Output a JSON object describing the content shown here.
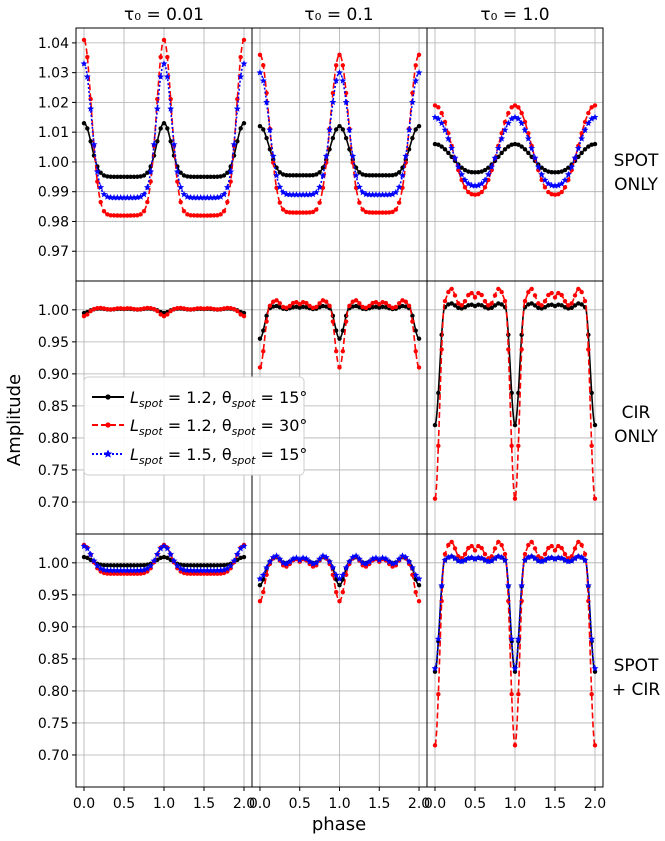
{
  "figure": {
    "ylabel": "Amplitude",
    "xlabel": "phase",
    "columns": [
      "τ₀ = 0.01",
      "τ₀ = 0.1",
      "τ₀ = 1.0"
    ],
    "rows": [
      [
        "SPOT",
        "ONLY"
      ],
      [
        "CIR",
        "ONLY"
      ],
      [
        "SPOT",
        "+ CIR"
      ]
    ],
    "legend": {
      "placement": "middle-left of row 2, column 1",
      "entries": [
        {
          "lhs": "L",
          "sub1": "spot",
          "mid": " = 1.2, θ",
          "sub2": "spot",
          "rhs": " = 15°"
        },
        {
          "lhs": "L",
          "sub1": "spot",
          "mid": " = 1.2, θ",
          "sub2": "spot",
          "rhs": " = 30°"
        },
        {
          "lhs": "L",
          "sub1": "spot",
          "mid": " = 1.5, θ",
          "sub2": "spot",
          "rhs": " = 15°"
        }
      ]
    }
  },
  "chart_data": {
    "type": "line",
    "grid": true,
    "xlim": [
      -0.1,
      2.1
    ],
    "xticks": [
      0.0,
      0.5,
      1.0,
      1.5,
      2.0
    ],
    "xtick_labels": [
      "0.0",
      "0.5",
      "1.0",
      "1.5",
      "2.0"
    ],
    "series_styles": [
      {
        "color": "#000000",
        "dash": "",
        "marker": "dot"
      },
      {
        "color": "#ff0000",
        "dash": "6,3",
        "marker": "dot"
      },
      {
        "color": "#0000ff",
        "dash": "2,2",
        "marker": "star"
      }
    ],
    "rows": [
      {
        "ylim": [
          0.96,
          1.045
        ],
        "yticks": [
          0.97,
          0.98,
          0.99,
          1.0,
          1.01,
          1.02,
          1.03,
          1.04
        ],
        "ytick_labels": [
          "0.97",
          "0.98",
          "0.99",
          "1.00",
          "1.01",
          "1.02",
          "1.03",
          "1.04"
        ],
        "panels": [
          {
            "title": "τ₀ = 0.01",
            "series": [
              {
                "shape": "flat",
                "base": 1.0,
                "flat": 0.995,
                "peak": 1.013
              },
              {
                "shape": "flat",
                "base": 1.0,
                "flat": 0.982,
                "peak": 1.041
              },
              {
                "shape": "flat",
                "base": 1.0,
                "flat": 0.988,
                "peak": 1.033
              }
            ]
          },
          {
            "title": "τ₀ = 0.1",
            "series": [
              {
                "shape": "round",
                "base": 1.0,
                "flat": 0.9955,
                "peak": 1.012
              },
              {
                "shape": "round",
                "base": 1.0,
                "flat": 0.983,
                "peak": 1.036
              },
              {
                "shape": "round",
                "base": 1.0,
                "flat": 0.989,
                "peak": 1.03
              }
            ]
          },
          {
            "title": "τ₀ = 1.0",
            "series": [
              {
                "shape": "cos",
                "base": 1.0,
                "flat": 0.9965,
                "peak": 1.006
              },
              {
                "shape": "cos",
                "base": 1.0,
                "flat": 0.989,
                "peak": 1.019
              },
              {
                "shape": "cos",
                "base": 1.0,
                "flat": 0.992,
                "peak": 1.015
              }
            ]
          }
        ]
      },
      {
        "ylim": [
          0.65,
          1.045
        ],
        "yticks": [
          0.7,
          0.75,
          0.8,
          0.85,
          0.9,
          0.95,
          1.0
        ],
        "ytick_labels": [
          "0.70",
          "0.75",
          "0.80",
          "0.85",
          "0.90",
          "0.95",
          "1.00"
        ],
        "panels": [
          {
            "series": [
              {
                "shape": "cir",
                "base": 1.0,
                "flat": 1.0,
                "peak": 1.0,
                "dip": 0.995,
                "bump": 0.002
              },
              {
                "shape": "cir",
                "base": 1.0,
                "flat": 1.0,
                "peak": 1.0,
                "dip": 0.99,
                "bump": 0.003
              }
            ]
          },
          {
            "series": [
              {
                "shape": "cir",
                "base": 1.0,
                "flat": 1.0,
                "peak": 1.0,
                "dip": 0.955,
                "bump": 0.006
              },
              {
                "shape": "cir",
                "base": 1.0,
                "flat": 1.0,
                "peak": 1.0,
                "dip": 0.91,
                "bump": 0.015
              }
            ]
          },
          {
            "series": [
              {
                "shape": "cir",
                "base": 1.0,
                "flat": 1.0,
                "peak": 1.0,
                "dip": 0.82,
                "bump": 0.01
              },
              {
                "shape": "cir",
                "base": 1.0,
                "flat": 1.0,
                "peak": 1.0,
                "dip": 0.705,
                "bump": 0.033
              }
            ]
          }
        ]
      },
      {
        "ylim": [
          0.65,
          1.045
        ],
        "yticks": [
          0.7,
          0.75,
          0.8,
          0.85,
          0.9,
          0.95,
          1.0
        ],
        "ytick_labels": [
          "0.70",
          "0.75",
          "0.80",
          "0.85",
          "0.90",
          "0.95",
          "1.00"
        ],
        "panels": [
          {
            "series": [
              {
                "shape": "flat",
                "base": 1.0,
                "flat": 0.996,
                "peak": 1.009
              },
              {
                "shape": "flat",
                "base": 1.0,
                "flat": 0.983,
                "peak": 1.028
              },
              {
                "shape": "flat",
                "base": 1.0,
                "flat": 0.988,
                "peak": 1.026
              }
            ]
          },
          {
            "series": [
              {
                "shape": "cir",
                "base": 0.997,
                "flat": 0.997,
                "peak": 0.997,
                "dip": 0.965,
                "bump": 0.012
              },
              {
                "shape": "cir",
                "base": 0.99,
                "flat": 0.99,
                "peak": 0.99,
                "dip": 0.94,
                "bump": 0.02
              },
              {
                "shape": "cir",
                "base": 0.995,
                "flat": 0.995,
                "peak": 0.995,
                "dip": 0.975,
                "bump": 0.016
              }
            ]
          },
          {
            "series": [
              {
                "shape": "cir",
                "base": 1.0,
                "flat": 1.0,
                "peak": 1.0,
                "dip": 0.83,
                "bump": 0.01
              },
              {
                "shape": "cir",
                "base": 1.0,
                "flat": 1.0,
                "peak": 1.0,
                "dip": 0.715,
                "bump": 0.033
              },
              {
                "shape": "cir",
                "base": 1.0,
                "flat": 1.0,
                "peak": 1.0,
                "dip": 0.835,
                "bump": 0.01
              }
            ]
          }
        ]
      }
    ]
  }
}
